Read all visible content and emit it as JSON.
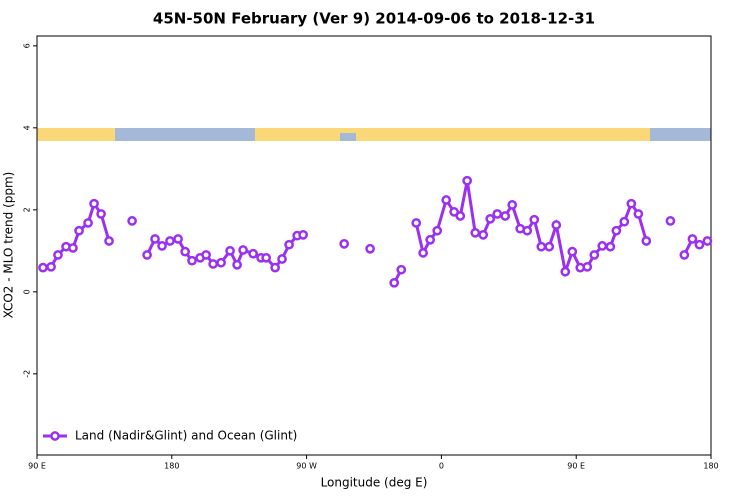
{
  "chart_data": {
    "type": "line",
    "title": "45N-50N February (Ver 9)   2014-09-06 to 2018-12-31",
    "xlabel": "Longitude (deg E)",
    "ylabel": "XCO2 - MLO trend (ppm)",
    "x": [
      94.0,
      99.4,
      104.0,
      109.4,
      114.0,
      118.1,
      124.1,
      128.1,
      132.8,
      138.1,
      145.4,
      153.5,
      158.8,
      163.5,
      168.8,
      173.5,
      178.8,
      184.2,
      188.9,
      193.5,
      198.9,
      202.9,
      207.6,
      212.9,
      218.9,
      223.6,
      227.6,
      234.3,
      239.6,
      243.0,
      249.0,
      253.6,
      258.3,
      263.7,
      267.7,
      281.0,
      295.1,
      303.8,
      312.4,
      320.5,
      328.5,
      333.2,
      337.8,
      343.2,
      347.8,
      352.5,
      357.2,
      363.2,
      368.5,
      372.6,
      377.2,
      382.6,
      387.9,
      392.6,
      397.3,
      402.6,
      407.3,
      412.6,
      417.3,
      422.0,
      426.7,
      432.0,
      436.7,
      442.7,
      447.4,
      452.7,
      457.4,
      462.1,
      467.4,
      472.8,
      476.8,
      482.1,
      486.8,
      491.5,
      496.8,
      504.8,
      512.9,
      517.5,
      522.2,
      527.6,
      532.3,
      537.6
    ],
    "series": [
      {
        "name": "Land (Nadir&Glint) and Ocean (Glint)",
        "color": "#9b30f0",
        "values": [
          0.59,
          0.61,
          0.9,
          1.1,
          1.07,
          1.49,
          1.68,
          2.15,
          1.9,
          1.24,
          null,
          1.73,
          null,
          0.9,
          1.29,
          1.12,
          1.24,
          1.29,
          0.98,
          0.76,
          0.83,
          0.9,
          0.68,
          0.71,
          1.0,
          0.66,
          1.02,
          0.93,
          0.83,
          0.83,
          0.59,
          0.8,
          1.15,
          1.37,
          1.39,
          null,
          1.17,
          null,
          1.05,
          null,
          0.22,
          0.54,
          null,
          1.68,
          0.95,
          1.27,
          1.49,
          2.24,
          1.95,
          1.85,
          2.71,
          1.44,
          1.39,
          1.78,
          1.9,
          1.85,
          2.12,
          1.54,
          1.49,
          1.76,
          1.1,
          1.1,
          1.63,
          0.49,
          0.98,
          0.59,
          0.61,
          0.9,
          1.12,
          1.1,
          1.49,
          1.71,
          2.15,
          1.9,
          1.24,
          null,
          1.73,
          null,
          0.9,
          1.29,
          1.15,
          1.24
        ]
      }
    ],
    "xlim": [
      90,
      540
    ],
    "xticks": [
      {
        "value": 90,
        "label": "90 E"
      },
      180,
      {
        "value": 270,
        "label": "90 W"
      },
      {
        "value": 360,
        "label": "0"
      },
      {
        "value": 450,
        "label": "90 E"
      },
      {
        "value": 540,
        "label": "180"
      }
    ],
    "ylim": [
      -3.98,
      6.24
    ],
    "yticks": [
      -2,
      0,
      2,
      4,
      6
    ],
    "legend": "bottomleft"
  }
}
